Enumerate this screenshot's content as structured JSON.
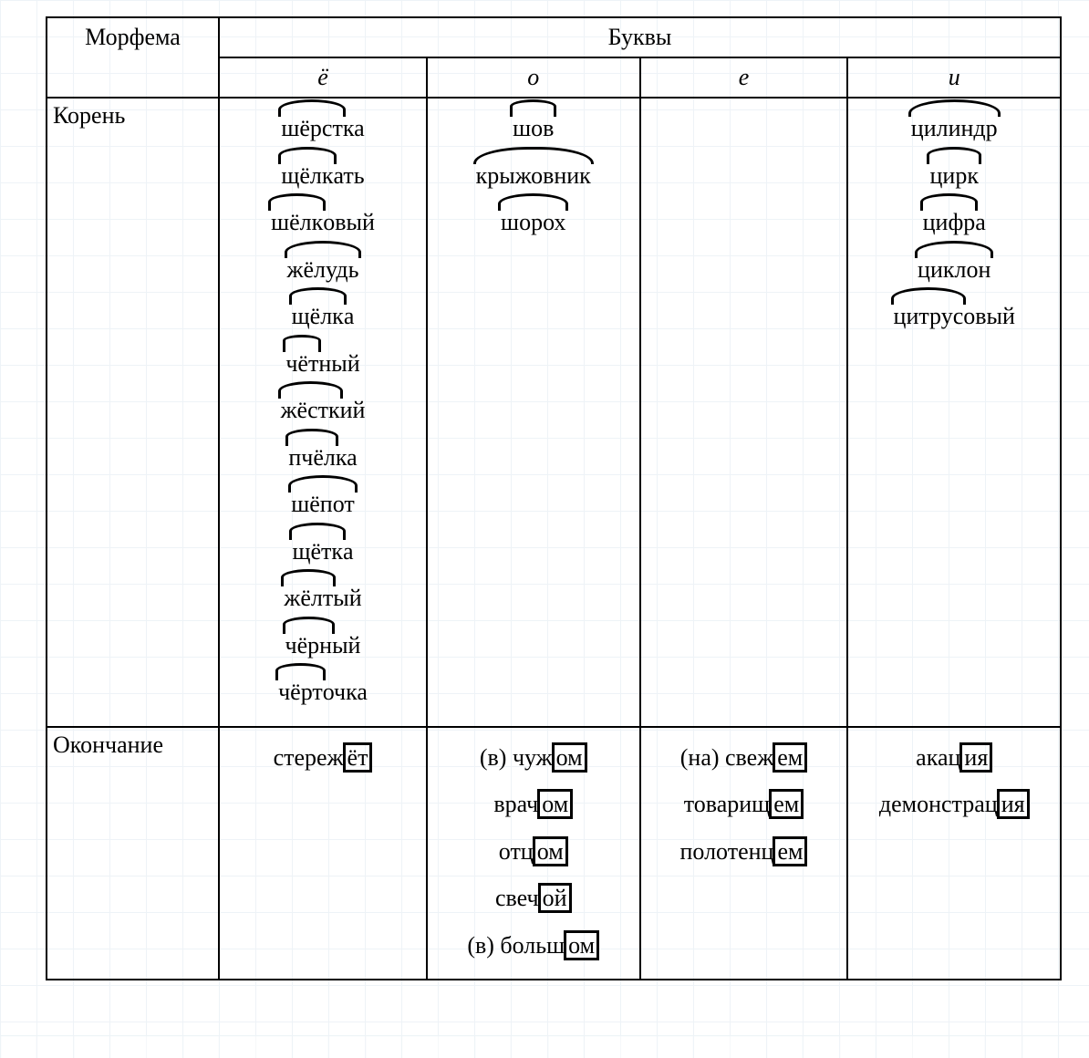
{
  "headers": {
    "morpheme": "Морфема",
    "letters": "Буквы",
    "cols": [
      "ё",
      "о",
      "е",
      "и"
    ]
  },
  "rows": [
    {
      "label": "Корень",
      "cells": [
        [
          {
            "pre": "",
            "root": "шёрст",
            "post": "ка"
          },
          {
            "pre": "",
            "root": "щёлк",
            "post": "ать"
          },
          {
            "pre": "",
            "root": "шёлк",
            "post": "овый"
          },
          {
            "pre": "",
            "root": "жёлудь",
            "post": ""
          },
          {
            "pre": "",
            "root": "щёлк",
            "post": "а"
          },
          {
            "pre": "",
            "root": "чёт",
            "post": "ный"
          },
          {
            "pre": "",
            "root": "жёстк",
            "post": "ий"
          },
          {
            "pre": "",
            "root": "пчёл",
            "post": "ка"
          },
          {
            "pre": "",
            "root": "шёпот",
            "post": ""
          },
          {
            "pre": "",
            "root": "щётк",
            "post": "а"
          },
          {
            "pre": "",
            "root": "жёлт",
            "post": "ый"
          },
          {
            "pre": "",
            "root": "чёрн",
            "post": "ый"
          },
          {
            "pre": "",
            "root": "чёрт",
            "post": "очка"
          }
        ],
        [
          {
            "pre": "",
            "root": "шов",
            "post": ""
          },
          {
            "pre": "",
            "root": "крыжовник",
            "post": ""
          },
          {
            "pre": "",
            "root": "шорох",
            "post": ""
          }
        ],
        [],
        [
          {
            "pre": "",
            "root": "цилиндр",
            "post": ""
          },
          {
            "pre": "",
            "root": "цирк",
            "post": ""
          },
          {
            "pre": "",
            "root": "цифр",
            "post": "а"
          },
          {
            "pre": "",
            "root": "циклон",
            "post": ""
          },
          {
            "pre": "",
            "root": "цитрус",
            "post": "овый"
          }
        ]
      ]
    },
    {
      "label": "Окончание",
      "cells": [
        [
          {
            "pre": "стереж",
            "end": "ёт"
          }
        ],
        [
          {
            "pre": "(в) чуж",
            "end": "ом"
          },
          {
            "pre": "врач",
            "end": "ом"
          },
          {
            "pre": "отц",
            "end": "ом"
          },
          {
            "pre": "свеч",
            "end": "ой"
          },
          {
            "pre": "(в) больш",
            "end": "ом"
          }
        ],
        [
          {
            "pre": "(на) свеж",
            "end": "ем"
          },
          {
            "pre": "товарищ",
            "end": "ем"
          },
          {
            "pre": "полотенц",
            "end": "ем"
          }
        ],
        [
          {
            "pre": "акац",
            "end": "ия"
          },
          {
            "pre": "демонстрац",
            "end": "ия"
          }
        ]
      ]
    }
  ],
  "layout": {
    "col_widths_pct": [
      17,
      20.5,
      21,
      20.5,
      21
    ]
  }
}
